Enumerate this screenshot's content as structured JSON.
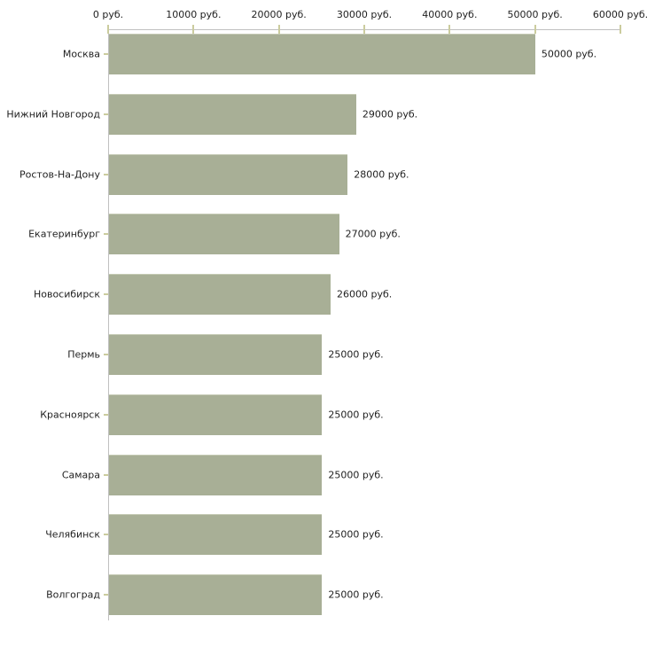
{
  "page": {
    "background": "#ffffff"
  },
  "chart_data": {
    "type": "bar",
    "orientation": "horizontal",
    "categories": [
      "Москва",
      "Нижний Новгород",
      "Ростов-На-Дону",
      "Екатеринбург",
      "Новосибирск",
      "Пермь",
      "Красноярск",
      "Самара",
      "Челябинск",
      "Волгоград"
    ],
    "values": [
      50000,
      29000,
      28000,
      27000,
      26000,
      25000,
      25000,
      25000,
      25000,
      25000
    ],
    "value_labels": [
      "50000 руб.",
      "29000 руб.",
      "28000 руб.",
      "27000 руб.",
      "26000 руб.",
      "25000 руб.",
      "25000 руб.",
      "25000 руб.",
      "25000 руб.",
      "25000 руб."
    ],
    "x_tick_values": [
      0,
      10000,
      20000,
      30000,
      40000,
      50000,
      60000
    ],
    "x_tick_labels": [
      "0 руб.",
      "10000 руб.",
      "20000 руб.",
      "30000 руб.",
      "40000 руб.",
      "50000 руб.",
      "60000 руб."
    ],
    "xlim": [
      0,
      60000
    ],
    "grid": "off",
    "legend": "none",
    "colors": {
      "bar": "#a8af96",
      "bar_top_edge": "#c5cab4",
      "axis": "#c0c0c0",
      "tick_mark": "#cbcc9e",
      "text": "#1f1f1f",
      "background": "#ffffff"
    }
  }
}
